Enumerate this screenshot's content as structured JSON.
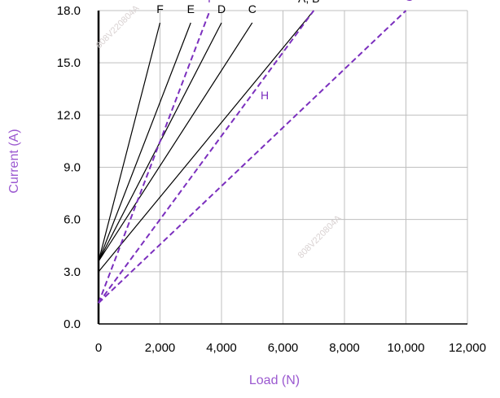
{
  "chart_data": {
    "type": "line",
    "title": "",
    "xlabel": "Load (N)",
    "ylabel": "Current (A)",
    "xlim": [
      0,
      12000
    ],
    "ylim": [
      0,
      18
    ],
    "x_ticks": [
      "0",
      "2,000",
      "4,000",
      "6,000",
      "8,000",
      "10,000",
      "12,000"
    ],
    "y_ticks": [
      "0.0",
      "3.0",
      "6.0",
      "9.0",
      "12.0",
      "15.0",
      "18.0"
    ],
    "grid": true,
    "colors": {
      "solid": "#000000",
      "dashed": "#7b2fbe",
      "axis_title": "#9b59d0",
      "grid": "#bfbfbf"
    },
    "series": [
      {
        "name": "A, B",
        "style": "solid",
        "x": [
          0,
          7000
        ],
        "y": [
          3.0,
          18.0
        ]
      },
      {
        "name": "C",
        "style": "solid",
        "x": [
          0,
          5000
        ],
        "y": [
          3.6,
          17.3
        ]
      },
      {
        "name": "D",
        "style": "solid",
        "x": [
          0,
          4000
        ],
        "y": [
          3.6,
          17.3
        ]
      },
      {
        "name": "E",
        "style": "solid",
        "x": [
          0,
          3000
        ],
        "y": [
          3.6,
          17.3
        ]
      },
      {
        "name": "F",
        "style": "solid",
        "x": [
          0,
          2000
        ],
        "y": [
          3.6,
          17.3
        ]
      },
      {
        "name": "G",
        "style": "dashed",
        "x": [
          0,
          10000
        ],
        "y": [
          1.2,
          18.0
        ]
      },
      {
        "name": "H",
        "style": "dashed",
        "x": [
          0,
          7000
        ],
        "y": [
          1.2,
          18.0
        ]
      },
      {
        "name": "I",
        "style": "dashed",
        "x": [
          0,
          3600
        ],
        "y": [
          1.2,
          17.9
        ]
      }
    ],
    "watermarks": [
      "808V220804A",
      "808V220804A"
    ]
  }
}
